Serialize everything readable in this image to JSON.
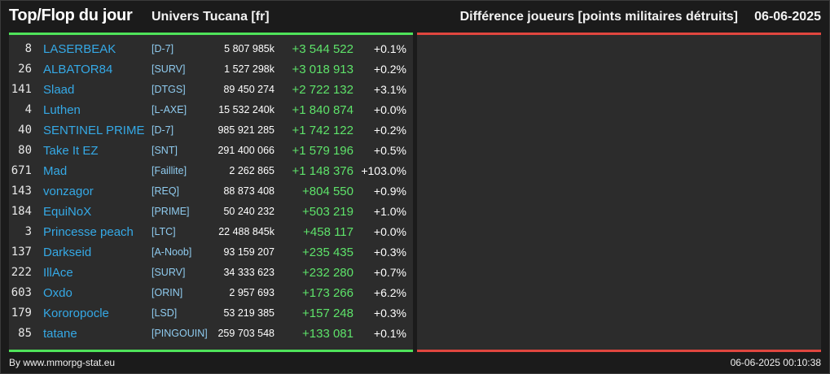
{
  "header": {
    "title": "Top/Flop du jour",
    "universe": "Univers Tucana [fr]",
    "metric": "Différence joueurs [points militaires détruits]",
    "date": "06-06-2025"
  },
  "colors": {
    "top_accent": "#4fe35a",
    "flop_accent": "#e0463f",
    "player_link": "#35a9e6",
    "gain": "#5ee36a"
  },
  "top_rows": [
    {
      "rank": "8",
      "player": "LASERBEAK",
      "alliance": "[D-7]",
      "points": "5 807 985k",
      "diff": "+3 544 522",
      "pct": "+0.1%"
    },
    {
      "rank": "26",
      "player": "ALBATOR84",
      "alliance": "[SURV]",
      "points": "1 527 298k",
      "diff": "+3 018 913",
      "pct": "+0.2%"
    },
    {
      "rank": "141",
      "player": "Slaad",
      "alliance": "[DTGS]",
      "points": "89 450 274",
      "diff": "+2 722 132",
      "pct": "+3.1%"
    },
    {
      "rank": "4",
      "player": "Luthen",
      "alliance": "[L-AXE]",
      "points": "15 532 240k",
      "diff": "+1 840 874",
      "pct": "+0.0%"
    },
    {
      "rank": "40",
      "player": "SENTINEL PRIME",
      "alliance": "[D-7]",
      "points": "985 921 285",
      "diff": "+1 742 122",
      "pct": "+0.2%"
    },
    {
      "rank": "80",
      "player": "Take It EZ",
      "alliance": "[SNT]",
      "points": "291 400 066",
      "diff": "+1 579 196",
      "pct": "+0.5%"
    },
    {
      "rank": "671",
      "player": "Mad",
      "alliance": "[Faillite]",
      "points": "2 262 865",
      "diff": "+1 148 376",
      "pct": "+103.0%"
    },
    {
      "rank": "143",
      "player": "vonzagor",
      "alliance": "[REQ]",
      "points": "88 873 408",
      "diff": "+804 550",
      "pct": "+0.9%"
    },
    {
      "rank": "184",
      "player": "EquiNoX",
      "alliance": "[PRIME]",
      "points": "50 240 232",
      "diff": "+503 219",
      "pct": "+1.0%"
    },
    {
      "rank": "3",
      "player": "Princesse peach",
      "alliance": "[LTC]",
      "points": "22 488 845k",
      "diff": "+458 117",
      "pct": "+0.0%"
    },
    {
      "rank": "137",
      "player": "Darkseid",
      "alliance": "[A-Noob]",
      "points": "93 159 207",
      "diff": "+235 435",
      "pct": "+0.3%"
    },
    {
      "rank": "222",
      "player": "IllAce",
      "alliance": "[SURV]",
      "points": "34 333 623",
      "diff": "+232 280",
      "pct": "+0.7%"
    },
    {
      "rank": "603",
      "player": "Oxdo",
      "alliance": "[ORIN]",
      "points": "2 957 693",
      "diff": "+173 266",
      "pct": "+6.2%"
    },
    {
      "rank": "179",
      "player": "Kororopocle",
      "alliance": "[LSD]",
      "points": "53 219 385",
      "diff": "+157 248",
      "pct": "+0.3%"
    },
    {
      "rank": "85",
      "player": "tatane",
      "alliance": "[PINGOUIN]",
      "points": "259 703 548",
      "diff": "+133 081",
      "pct": "+0.1%"
    }
  ],
  "flop_rows": [],
  "footer": {
    "credit": "By www.mmorpg-stat.eu",
    "timestamp": "06-06-2025 00:10:38"
  }
}
